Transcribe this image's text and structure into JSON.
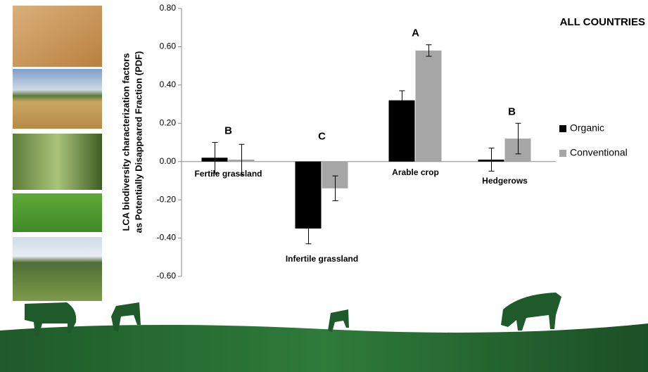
{
  "chart_data": {
    "type": "bar",
    "title": "ALL COUNTRIES",
    "y_label_lines": [
      "LCA biodiversity characterization factors",
      "as Potentially Disappeared Fraction (PDF)"
    ],
    "categories": [
      "Fertile grassland",
      "Infertile grassland",
      "Arable crop",
      "Hedgerows"
    ],
    "group_labels": [
      "B",
      "C",
      "A",
      "B"
    ],
    "series": [
      {
        "name": "Organic",
        "color": "#000000",
        "values": [
          0.02,
          -0.35,
          0.32,
          0.01
        ],
        "errors": [
          0.08,
          0.08,
          0.05,
          0.06
        ]
      },
      {
        "name": "Conventional",
        "color": "#a6a6a6",
        "values": [
          0.01,
          -0.14,
          0.58,
          0.12
        ],
        "errors": [
          0.08,
          0.065,
          0.03,
          0.08
        ]
      }
    ],
    "ylim": [
      -0.6,
      0.8
    ],
    "yticks": [
      {
        "value": -0.6,
        "label": "-0.60"
      },
      {
        "value": -0.4,
        "label": "-0.40"
      },
      {
        "value": -0.2,
        "label": "-0.20"
      },
      {
        "value": 0,
        "label": "0.00"
      },
      {
        "value": 0.2,
        "label": "0.20"
      },
      {
        "value": 0.4,
        "label": "0.40"
      },
      {
        "value": 0.6,
        "label": "0.60"
      },
      {
        "value": 0.8,
        "label": "0.80"
      }
    ],
    "legend": "right"
  }
}
